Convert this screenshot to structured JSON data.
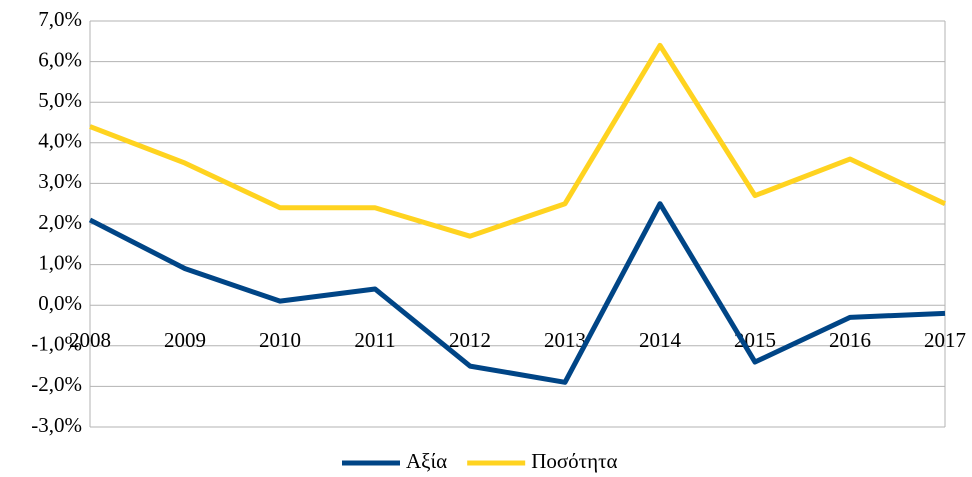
{
  "chart_data": {
    "type": "line",
    "categories": [
      "2008",
      "2009",
      "2010",
      "2011",
      "2012",
      "2013",
      "2014",
      "2015",
      "2016",
      "2017"
    ],
    "series": [
      {
        "name": "Αξία",
        "color": "#004586",
        "values": [
          2.1,
          0.9,
          0.1,
          0.4,
          -1.5,
          -1.9,
          2.5,
          -1.4,
          -0.3,
          -0.2
        ]
      },
      {
        "name": "Ποσότητα",
        "color": "#ffd320",
        "values": [
          4.4,
          3.5,
          2.4,
          2.4,
          1.7,
          2.5,
          6.4,
          2.7,
          3.6,
          2.5
        ]
      }
    ],
    "ylim": [
      -3,
      7
    ],
    "yticks": [
      {
        "value": -3,
        "label": "-3,0%"
      },
      {
        "value": -2,
        "label": "-2,0%"
      },
      {
        "value": -1,
        "label": "-1,0%"
      },
      {
        "value": 0,
        "label": "0,0%"
      },
      {
        "value": 1,
        "label": "1,0%"
      },
      {
        "value": 2,
        "label": "2,0%"
      },
      {
        "value": 3,
        "label": "3,0%"
      },
      {
        "value": 4,
        "label": "4,0%"
      },
      {
        "value": 5,
        "label": "5,0%"
      },
      {
        "value": 6,
        "label": "6,0%"
      },
      {
        "value": 7,
        "label": "7,0%"
      }
    ],
    "grid": true,
    "legend": "bottom"
  }
}
